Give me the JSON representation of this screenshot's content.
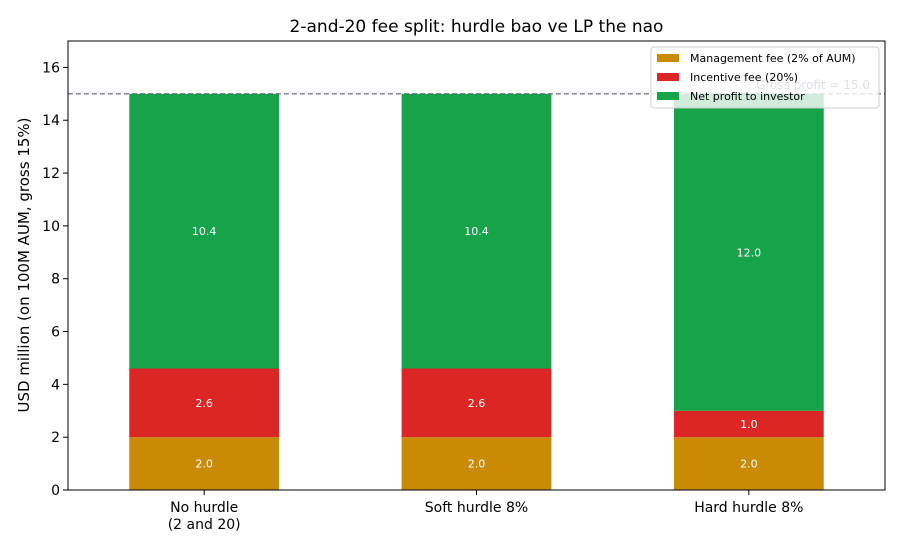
{
  "chart_data": {
    "type": "bar",
    "stacked": true,
    "title": "2-and-20 fee split: hurdle bao ve LP the nao",
    "xlabel": "",
    "ylabel": "USD million (on 100M AUM, gross 15%)",
    "ylim": [
      0,
      17
    ],
    "yticks": [
      0,
      2,
      4,
      6,
      8,
      10,
      12,
      14,
      16
    ],
    "categories": [
      [
        "No hurdle",
        "(2 and 20)"
      ],
      [
        "Soft hurdle 8%"
      ],
      [
        "Hard hurdle 8%"
      ]
    ],
    "series": [
      {
        "name": "Management fee (2% of AUM)",
        "color": "#c98a04",
        "values": [
          2.0,
          2.0,
          2.0
        ],
        "labels": [
          "2.0",
          "2.0",
          "2.0"
        ]
      },
      {
        "name": "Incentive fee (20%)",
        "color": "#dc2626",
        "values": [
          2.6,
          2.6,
          1.0
        ],
        "labels": [
          "2.6",
          "2.6",
          "1.0"
        ]
      },
      {
        "name": "Net profit to investor",
        "color": "#16a34a",
        "values": [
          10.4,
          10.4,
          12.0
        ],
        "labels": [
          "10.4",
          "10.4",
          "12.0"
        ]
      }
    ],
    "reference_line": {
      "value": 15.0,
      "label": "Gross profit = 15.0",
      "color": "#5a6178"
    },
    "legend_position": "top-right",
    "grid": false
  }
}
